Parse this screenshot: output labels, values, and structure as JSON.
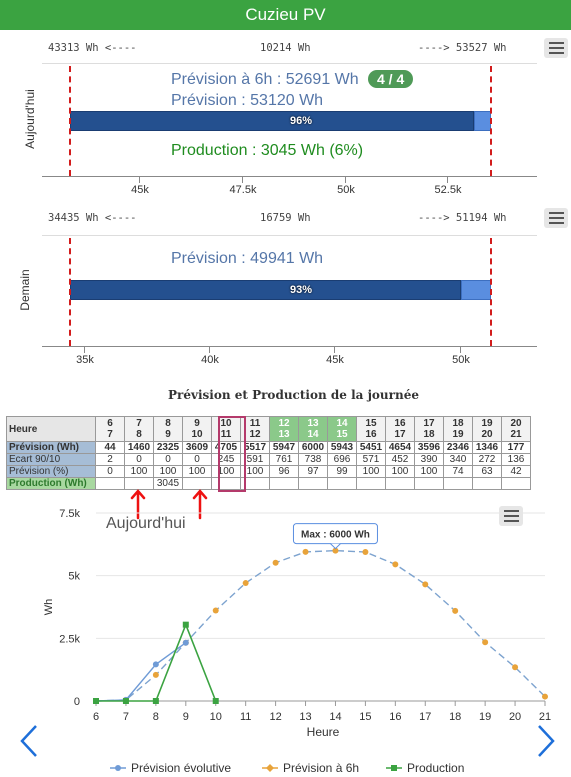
{
  "app": {
    "title": "Cuzieu PV"
  },
  "today": {
    "side_label": "Aujourd'hui",
    "range_left": "43313 Wh <----",
    "range_mid": "10214 Wh",
    "range_right": "----> 53527 Wh",
    "forecast_6h": "Prévision à 6h : 52691 Wh",
    "badge": "4 / 4",
    "forecast": "Prévision : 53120 Wh",
    "bar_percent": "96%",
    "bar_fill": 0.96,
    "production": "Production : 3045 Wh (6%)",
    "ticks": [
      "45k",
      "47.5k",
      "50k",
      "52.5k"
    ]
  },
  "tomorrow": {
    "side_label": "Demain",
    "range_left": "34435 Wh <----",
    "range_mid": "16759 Wh",
    "range_right": "----> 51194 Wh",
    "forecast": "Prévision : 49941 Wh",
    "bar_percent": "93%",
    "bar_fill": 0.93,
    "ticks": [
      "35k",
      "40k",
      "45k",
      "50k"
    ]
  },
  "table": {
    "title": "Prévision et Production de la journée",
    "header_label": "Heure",
    "hours_top": [
      "6",
      "7",
      "8",
      "9",
      "10",
      "11",
      "12",
      "13",
      "14",
      "15",
      "16",
      "17",
      "18",
      "19",
      "20"
    ],
    "hours_bottom": [
      "7",
      "8",
      "9",
      "10",
      "11",
      "12",
      "13",
      "14",
      "15",
      "16",
      "17",
      "18",
      "19",
      "20",
      "21"
    ],
    "row_labels": [
      "Prévision (Wh)",
      "Ecart 90/10",
      "Prévision (%)",
      "Production (Wh)"
    ],
    "prevision": [
      "44",
      "1460",
      "2325",
      "3609",
      "4705",
      "5517",
      "5947",
      "6000",
      "5943",
      "5451",
      "4654",
      "3596",
      "2346",
      "1346",
      "177"
    ],
    "ecart": [
      "2",
      "0",
      "0",
      "0",
      "245",
      "591",
      "761",
      "738",
      "696",
      "571",
      "452",
      "390",
      "340",
      "272",
      "136"
    ],
    "prevision_pct": [
      "0",
      "100",
      "100",
      "100",
      "100",
      "100",
      "96",
      "97",
      "99",
      "100",
      "100",
      "100",
      "74",
      "63",
      "42"
    ],
    "production": [
      "",
      "",
      "3045",
      "",
      "",
      "",
      "",
      "",
      "",
      "",
      "",
      "",
      "",
      "",
      ""
    ]
  },
  "chart": {
    "overlay_title": "Aujourd'hui",
    "tooltip": "Max : 6000 Wh",
    "ylabel": "Wh",
    "xlabel": "Heure",
    "legend": [
      "Prévision évolutive",
      "Prévision à 6h",
      "Production"
    ]
  },
  "chart_data": {
    "type": "line",
    "title": "Aujourd'hui",
    "xlabel": "Heure",
    "ylabel": "Wh",
    "ylim": [
      0,
      7500
    ],
    "yticks": [
      "0",
      "2.5k",
      "5k",
      "7.5k"
    ],
    "xlim": [
      6,
      21
    ],
    "x_ticks": [
      6,
      7,
      8,
      9,
      10,
      11,
      12,
      13,
      14,
      15,
      16,
      17,
      18,
      19,
      20,
      21
    ],
    "series": [
      {
        "name": "Prévision évolutive",
        "color": "#6f9bd6",
        "x": [
          6,
          7,
          8,
          9
        ],
        "y": [
          0,
          44,
          1460,
          2325
        ]
      },
      {
        "name": "Prévision à 6h",
        "color": "#e8a33a",
        "x": [
          6,
          7,
          8,
          9,
          10,
          11,
          12,
          13,
          14,
          15,
          16,
          17,
          18,
          19,
          20,
          21
        ],
        "y": [
          0,
          44,
          1040,
          2325,
          3609,
          4705,
          5517,
          5947,
          6000,
          5943,
          5451,
          4654,
          3596,
          2346,
          1346,
          177
        ]
      },
      {
        "name": "Production",
        "color": "#3ba341",
        "x": [
          6,
          7,
          8,
          9,
          10
        ],
        "y": [
          0,
          0,
          0,
          3045,
          0
        ]
      }
    ]
  }
}
